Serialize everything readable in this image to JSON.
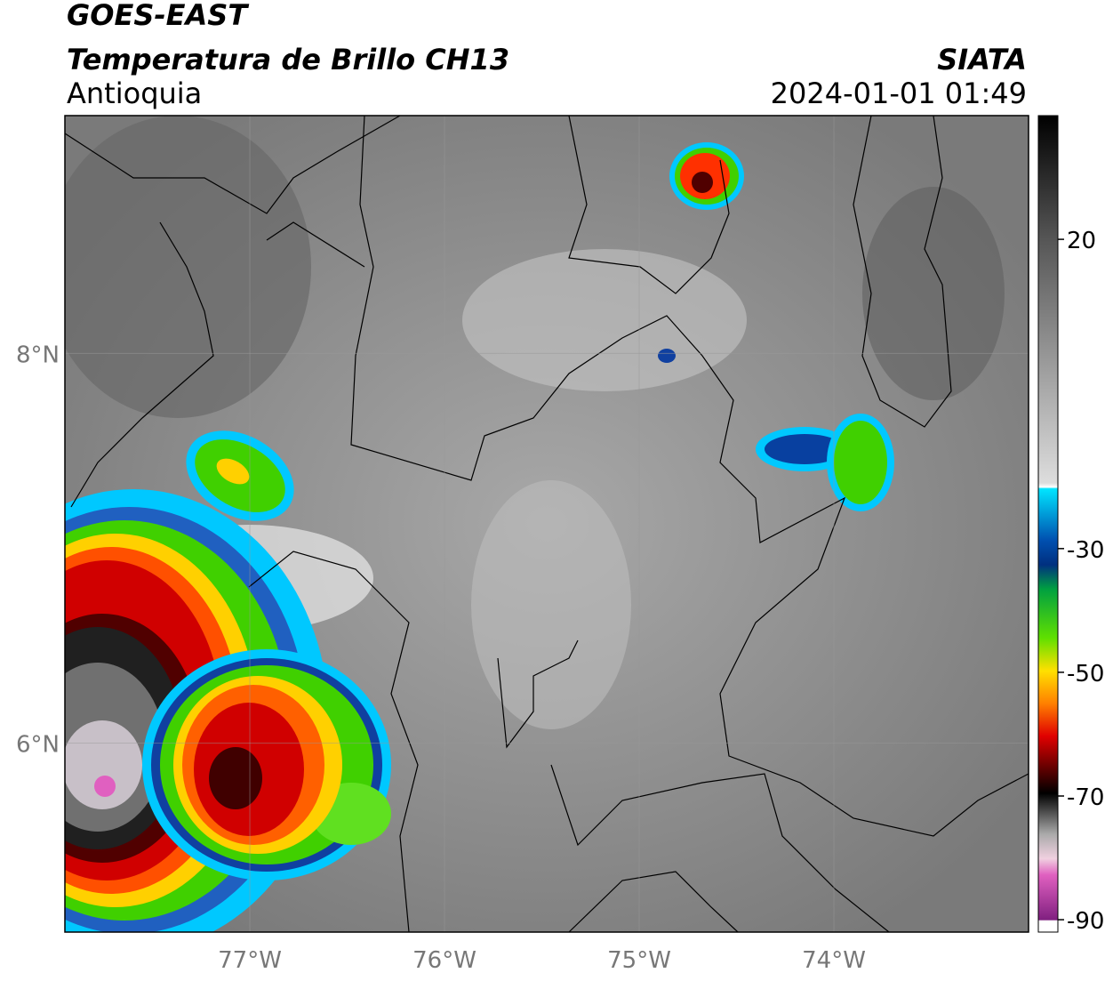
{
  "header": {
    "title": "GOES-EAST",
    "subtitle": "Temperatura de Brillo CH13",
    "region": "Antioquia",
    "source": "SIATA",
    "datetime": "2024-01-01 01:49"
  },
  "map": {
    "xlim": [
      -77.95,
      -73
    ],
    "ylim": [
      5.03,
      9.22
    ],
    "xticks": [
      {
        "value": -77,
        "label": "77°W"
      },
      {
        "value": -76,
        "label": "76°W"
      },
      {
        "value": -75,
        "label": "75°W"
      },
      {
        "value": -74,
        "label": "74°W"
      }
    ],
    "yticks": [
      {
        "value": 6,
        "label": "6°N"
      },
      {
        "value": 8,
        "label": "8°N"
      }
    ],
    "grid": true
  },
  "colorbar": {
    "lim": [
      -92,
      40
    ],
    "ticks": [
      20,
      -30,
      -50,
      -70,
      -90
    ]
  }
}
